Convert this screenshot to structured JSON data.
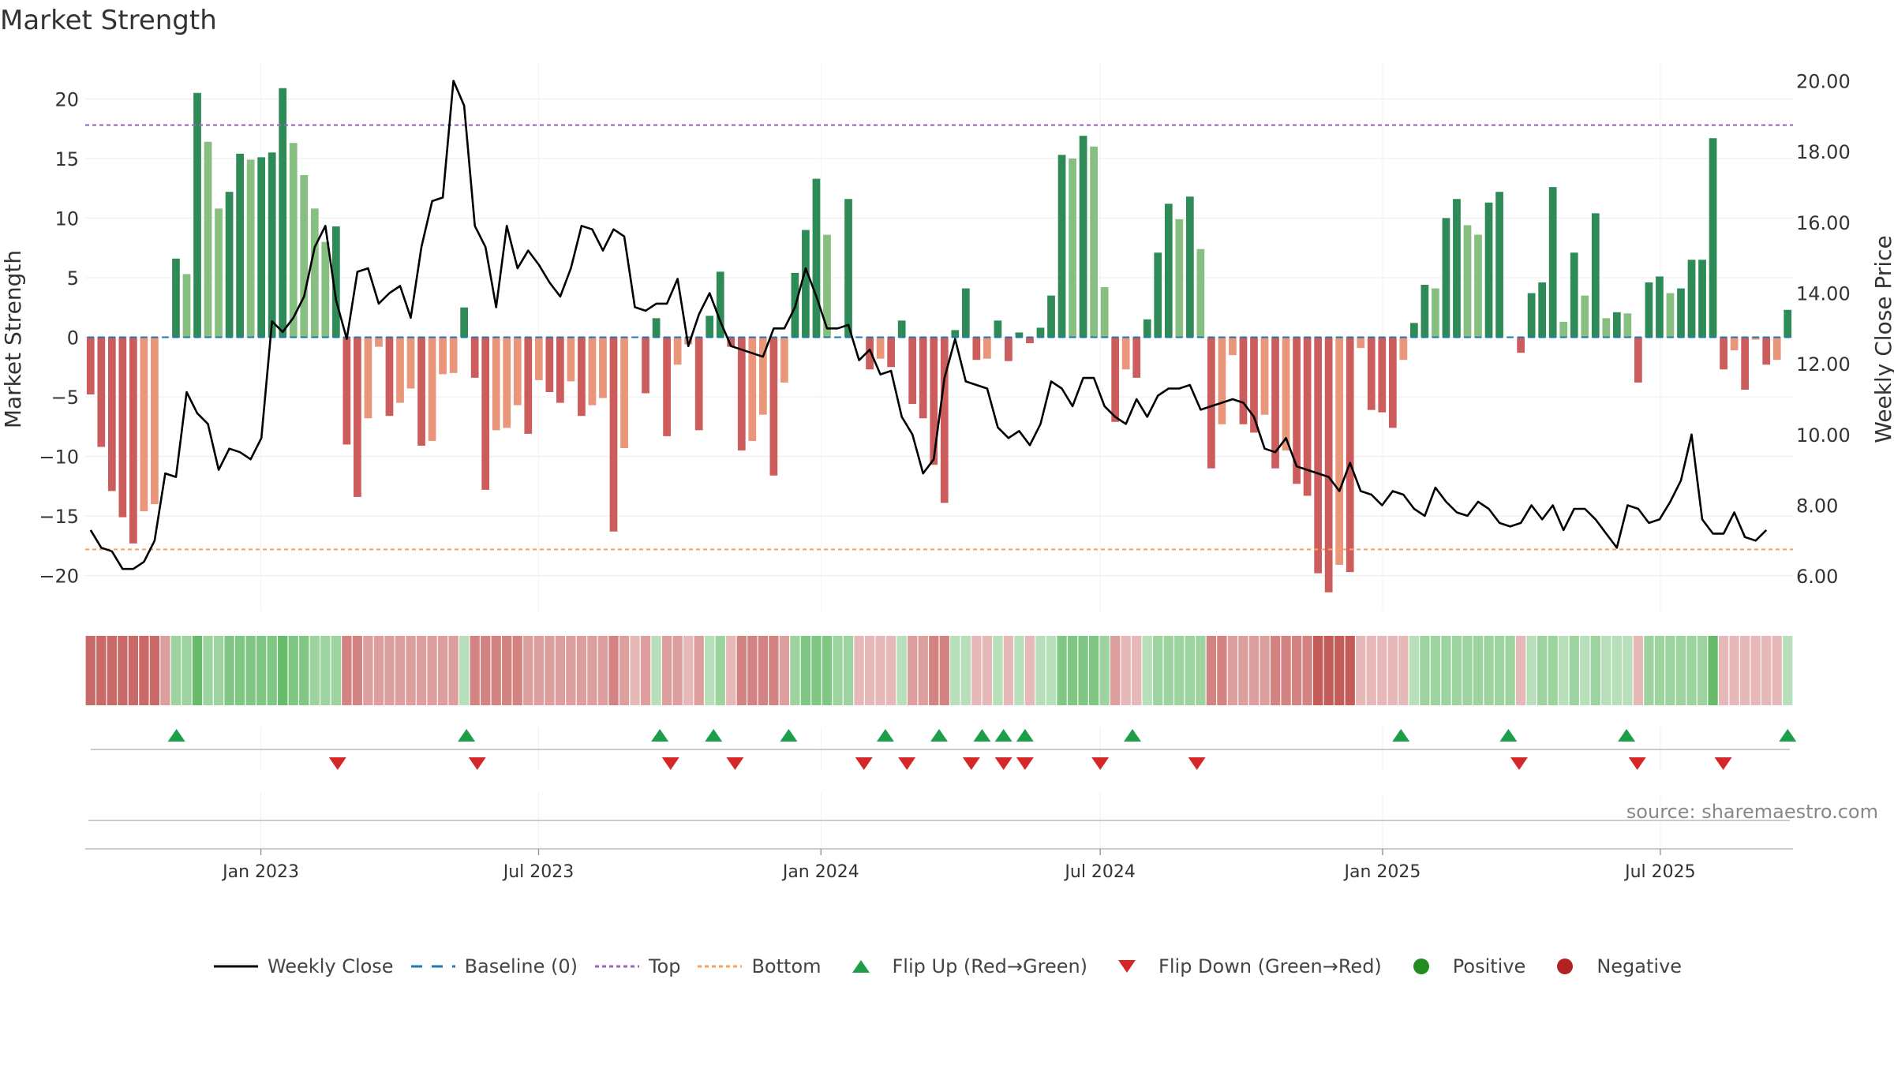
{
  "title": "Market Strength",
  "source": "source: sharemaestro.com",
  "chart_data": {
    "type": "bar",
    "title": "Market Strength",
    "ylabel_left": "Market Strength",
    "ylabel_right": "Weekly Close Price",
    "ylim_left": [
      -23,
      23
    ],
    "ylim_right": [
      5.0,
      20.5
    ],
    "yticks_left": [
      20,
      15,
      10,
      5,
      0,
      -5,
      -10,
      -15,
      -20
    ],
    "yticks_left_labels": [
      "20",
      "15",
      "10",
      "5",
      "0",
      "−5",
      "−10",
      "−15",
      "−20"
    ],
    "yticks_right": [
      20,
      18,
      16,
      14,
      12,
      10,
      8,
      6
    ],
    "yticks_right_labels": [
      "20.00",
      "18.00",
      "16.00",
      "14.00",
      "12.00",
      "10.00",
      "8.00",
      "6.00"
    ],
    "x_start": "2022-09-12",
    "x_end": "2025-09-22",
    "xticks": [
      "2023-01-01",
      "2023-07-01",
      "2024-01-01",
      "2024-07-01",
      "2025-01-01",
      "2025-07-01"
    ],
    "xtick_labels": [
      "Jan 2023",
      "Jul 2023",
      "Jan 2024",
      "Jul 2024",
      "Jan 2025",
      "Jul 2025"
    ],
    "top_level": 17.8,
    "bottom_level": -17.8,
    "baseline": 0,
    "grid": true,
    "legend_position": "bottom-center",
    "strength": [
      -4.8,
      -9.2,
      -12.9,
      -15.1,
      -17.3,
      -14.6,
      -14.0,
      0,
      6.6,
      5.3,
      20.5,
      16.4,
      10.8,
      12.2,
      15.4,
      14.9,
      15.1,
      15.5,
      20.9,
      16.3,
      13.6,
      10.8,
      8.0,
      9.3,
      -9.0,
      -13.4,
      -6.8,
      -0.8,
      -6.6,
      -5.5,
      -4.3,
      -9.1,
      -8.7,
      -3.1,
      -3.0,
      2.5,
      -3.4,
      -12.8,
      -7.8,
      -7.6,
      -5.7,
      -8.1,
      -3.6,
      -4.6,
      -5.5,
      -3.7,
      -6.6,
      -5.7,
      -5.1,
      -16.3,
      -9.3,
      0,
      -4.7,
      1.6,
      -8.3,
      -2.3,
      -0.6,
      -7.8,
      1.8,
      5.5,
      -0.8,
      -9.5,
      -8.7,
      -6.5,
      -11.6,
      -3.8,
      5.4,
      9.0,
      13.3,
      8.6,
      0,
      11.6,
      0,
      -2.7,
      -1.8,
      -2.5,
      1.4,
      -5.6,
      -6.8,
      -10.7,
      -13.9,
      0.6,
      4.1,
      -1.9,
      -1.8,
      1.4,
      -2.0,
      0.4,
      -0.5,
      0.8,
      3.5,
      15.3,
      15.0,
      16.9,
      16.0,
      4.2,
      -7.1,
      -2.7,
      -3.4,
      1.5,
      7.1,
      11.2,
      9.9,
      11.8,
      7.4,
      -11.0,
      -7.3,
      -1.5,
      -7.3,
      -8.0,
      -6.5,
      -11.0,
      -9.5,
      -12.3,
      -13.3,
      -19.8,
      -21.4,
      -19.1,
      -19.7,
      -0.9,
      -6.1,
      -6.3,
      -7.6,
      -1.9,
      1.2,
      4.4,
      4.1,
      10.0,
      11.6,
      9.4,
      8.6,
      11.3,
      12.2,
      0,
      -1.3,
      3.7,
      4.6,
      12.6,
      1.3,
      7.1,
      3.5,
      10.4,
      1.6,
      2.1,
      2.0,
      -3.8,
      4.6,
      5.1,
      3.7,
      4.1,
      6.5,
      6.5,
      16.7,
      -2.7,
      -1.1,
      -4.4,
      -0.2,
      -2.3,
      -1.9,
      2.3
    ],
    "weekly_close": [
      7.3,
      6.8,
      6.7,
      6.2,
      6.2,
      6.4,
      7.0,
      8.9,
      8.8,
      11.2,
      10.6,
      10.3,
      9.0,
      9.6,
      9.5,
      9.3,
      9.9,
      13.2,
      12.9,
      13.3,
      13.9,
      15.3,
      15.9,
      13.8,
      12.7,
      14.6,
      14.7,
      13.7,
      14.0,
      14.2,
      13.3,
      15.3,
      16.6,
      16.7,
      20.0,
      19.3,
      15.9,
      15.3,
      13.6,
      15.9,
      14.7,
      15.2,
      14.8,
      14.3,
      13.9,
      14.7,
      15.9,
      15.8,
      15.2,
      15.8,
      15.6,
      13.6,
      13.5,
      13.7,
      13.7,
      14.4,
      12.5,
      13.4,
      14.0,
      13.2,
      12.5,
      12.4,
      12.3,
      12.2,
      13.0,
      13.0,
      13.6,
      14.7,
      13.9,
      13.0,
      13.0,
      13.1,
      12.1,
      12.4,
      11.7,
      11.8,
      10.5,
      10.0,
      8.9,
      9.3,
      11.6,
      12.7,
      11.5,
      11.4,
      11.3,
      10.2,
      9.9,
      10.1,
      9.7,
      10.3,
      11.5,
      11.3,
      10.8,
      11.6,
      11.6,
      10.8,
      10.5,
      10.3,
      11.0,
      10.5,
      11.1,
      11.3,
      11.3,
      11.4,
      10.7,
      10.8,
      10.9,
      11.0,
      10.9,
      10.5,
      9.6,
      9.5,
      9.9,
      9.1,
      9.0,
      8.9,
      8.8,
      8.4,
      9.2,
      8.4,
      8.3,
      8.0,
      8.4,
      8.3,
      7.9,
      7.7,
      8.5,
      8.1,
      7.8,
      7.7,
      8.1,
      7.9,
      7.5,
      7.4,
      7.5,
      8.0,
      7.6,
      8.0,
      7.3,
      7.9,
      7.9,
      7.6,
      7.2,
      6.8,
      8.0,
      7.9,
      7.5,
      7.6,
      8.1,
      8.7,
      10.0,
      7.6,
      7.2,
      7.2,
      7.8,
      7.1,
      7.0,
      7.3
    ],
    "background_shade": [
      -0.8,
      -0.8,
      -0.8,
      -0.8,
      -0.8,
      -0.8,
      -0.8,
      -0.4,
      0.4,
      0.4,
      0.8,
      0.4,
      0.4,
      0.6,
      0.6,
      0.6,
      0.6,
      0.6,
      0.8,
      0.6,
      0.6,
      0.4,
      0.4,
      0.4,
      -0.6,
      -0.6,
      -0.4,
      -0.4,
      -0.4,
      -0.4,
      -0.4,
      -0.4,
      -0.4,
      -0.4,
      -0.4,
      0.2,
      -0.6,
      -0.6,
      -0.6,
      -0.6,
      -0.6,
      -0.4,
      -0.4,
      -0.4,
      -0.4,
      -0.4,
      -0.4,
      -0.4,
      -0.4,
      -0.6,
      -0.4,
      -0.2,
      -0.4,
      0.2,
      -0.4,
      -0.4,
      -0.2,
      -0.4,
      0.2,
      0.4,
      -0.2,
      -0.6,
      -0.6,
      -0.6,
      -0.6,
      -0.4,
      0.4,
      0.6,
      0.6,
      0.6,
      0.4,
      0.4,
      -0.2,
      -0.2,
      -0.2,
      -0.2,
      0.2,
      -0.4,
      -0.4,
      -0.6,
      -0.6,
      0.2,
      0.2,
      -0.2,
      -0.2,
      0.2,
      -0.2,
      0.2,
      -0.2,
      0.2,
      0.2,
      0.6,
      0.6,
      0.6,
      0.6,
      0.4,
      -0.4,
      -0.2,
      -0.2,
      0.2,
      0.4,
      0.4,
      0.4,
      0.4,
      0.4,
      -0.6,
      -0.6,
      -0.4,
      -0.4,
      -0.4,
      -0.4,
      -0.6,
      -0.6,
      -0.6,
      -0.6,
      -0.9,
      -0.9,
      -0.9,
      -0.9,
      -0.2,
      -0.2,
      -0.2,
      -0.2,
      -0.2,
      0.2,
      0.4,
      0.4,
      0.4,
      0.4,
      0.4,
      0.4,
      0.4,
      0.4,
      0.4,
      -0.2,
      0.2,
      0.4,
      0.4,
      0.2,
      0.4,
      0.2,
      0.4,
      0.2,
      0.2,
      0.2,
      -0.2,
      0.4,
      0.4,
      0.4,
      0.4,
      0.4,
      0.4,
      0.8,
      -0.2,
      -0.2,
      -0.2,
      -0.2,
      -0.2,
      -0.2,
      0.2
    ],
    "flip_up_dates": [
      "2022-11-07",
      "2023-05-15",
      "2023-09-18",
      "2023-10-23",
      "2023-12-11",
      "2024-02-12",
      "2024-03-18",
      "2024-04-15",
      "2024-04-29",
      "2024-05-13",
      "2024-07-22",
      "2025-01-13",
      "2025-03-24",
      "2025-06-09",
      "2025-09-22"
    ],
    "flip_down_dates": [
      "2023-02-20",
      "2023-05-22",
      "2023-09-25",
      "2023-11-06",
      "2024-01-29",
      "2024-02-26",
      "2024-04-08",
      "2024-04-29",
      "2024-05-13",
      "2024-07-01",
      "2024-09-02",
      "2025-03-31",
      "2025-06-16",
      "2025-08-11"
    ],
    "series": [
      {
        "name": "Weekly Close",
        "color": "#000000"
      },
      {
        "name": "Baseline (0)",
        "color": "#1f77b4"
      },
      {
        "name": "Top",
        "color": "#9467bd"
      },
      {
        "name": "Bottom",
        "color": "#f4a460"
      },
      {
        "name": "Flip Up (Red→Green)",
        "color": "#1f9e4a"
      },
      {
        "name": "Flip Down (Green→Red)",
        "color": "#d62728"
      },
      {
        "name": "Positive",
        "color": "#228b22"
      },
      {
        "name": "Negative",
        "color": "#b22222"
      }
    ]
  },
  "legend": [
    {
      "label": "Weekly Close",
      "icon": "solid-line-icon",
      "color": "#000000"
    },
    {
      "label": "Baseline (0)",
      "icon": "dashed-line-icon",
      "color": "#1f77b4"
    },
    {
      "label": "Top",
      "icon": "dotted-line-icon",
      "color": "#9467bd"
    },
    {
      "label": "Bottom",
      "icon": "dotted-line-icon",
      "color": "#f4a460"
    },
    {
      "label": "Flip Up (Red→Green)",
      "icon": "triangle-up-icon",
      "color": "#1f9e4a"
    },
    {
      "label": "Flip Down (Green→Red)",
      "icon": "triangle-down-icon",
      "color": "#d62728"
    },
    {
      "label": "Positive",
      "icon": "circle-icon",
      "color": "#228b22"
    },
    {
      "label": "Negative",
      "icon": "circle-icon",
      "color": "#b22222"
    }
  ]
}
